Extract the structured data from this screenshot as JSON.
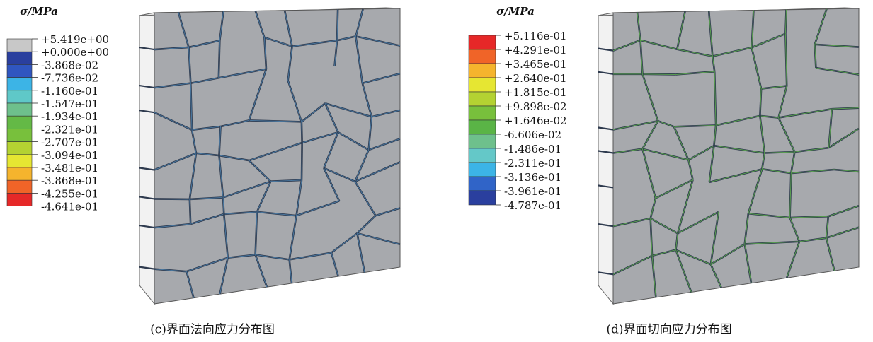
{
  "panels": [
    {
      "legend": {
        "title": "σ/MPa",
        "entries": [
          {
            "label": "+5.419e+00",
            "color": "#c8c8c8"
          },
          {
            "label": "+0.000e+00",
            "color": "#2a3f9e"
          },
          {
            "label": "-3.868e-02",
            "color": "#3056c0"
          },
          {
            "label": "-7.736e-02",
            "color": "#3cb4e6"
          },
          {
            "label": "-1.160e-01",
            "color": "#5fc8c8"
          },
          {
            "label": "-1.547e-01",
            "color": "#6ec08c"
          },
          {
            "label": "-1.934e-01",
            "color": "#64b946"
          },
          {
            "label": "-2.321e-01",
            "color": "#78c03c"
          },
          {
            "label": "-2.707e-01",
            "color": "#b4d232"
          },
          {
            "label": "-3.094e-01",
            "color": "#e6e632"
          },
          {
            "label": "-3.481e-01",
            "color": "#f5b42d"
          },
          {
            "label": "-3.868e-01",
            "color": "#f06428"
          },
          {
            "label": "-4.255e-01",
            "color": "#e62828"
          }
        ]
      },
      "extra_label": "-4.641e-01",
      "caption": "(c)界面法向应力分布图"
    },
    {
      "legend": {
        "title": "σ/MPa",
        "entries": [
          {
            "label": "+5.116e-01",
            "color": "#e62828"
          },
          {
            "label": "+4.291e-01",
            "color": "#f06428"
          },
          {
            "label": "+3.465e-01",
            "color": "#f5b42d"
          },
          {
            "label": "+2.640e-01",
            "color": "#e6e632"
          },
          {
            "label": "+1.815e-01",
            "color": "#b4d232"
          },
          {
            "label": "+9.898e-02",
            "color": "#78c03c"
          },
          {
            "label": "+1.646e-02",
            "color": "#5ab446"
          },
          {
            "label": "-6.606e-02",
            "color": "#6ec08c"
          },
          {
            "label": "-1.486e-01",
            "color": "#64c8c8"
          },
          {
            "label": "-2.311e-01",
            "color": "#3cb4e6"
          },
          {
            "label": "-3.136e-01",
            "color": "#3064c8"
          },
          {
            "label": "-3.961e-01",
            "color": "#2a3f9e"
          }
        ]
      },
      "extra_label": "-4.787e-01",
      "caption": "(d)界面切向应力分布图"
    }
  ]
}
